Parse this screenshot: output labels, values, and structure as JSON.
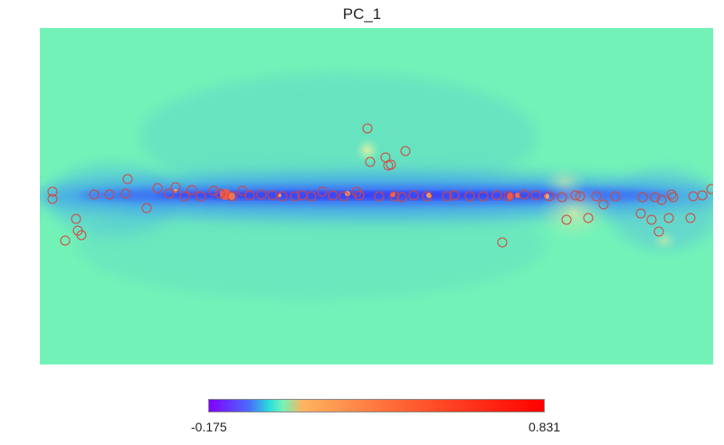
{
  "chart_data": {
    "type": "heatmap",
    "title": "PC_1",
    "projection": "mollweide-style full-sky map",
    "colormap": "rainbow",
    "colorbar": {
      "min": "-0.175",
      "max": "0.831",
      "stops": [
        "#8000ff",
        "#4a6dfb",
        "#2adddd",
        "#73f2b8",
        "#ffb360",
        "#ff6a38",
        "#ff0000"
      ]
    },
    "background_color": "#73f2b8",
    "marker_color": "#d6453c"
  }
}
